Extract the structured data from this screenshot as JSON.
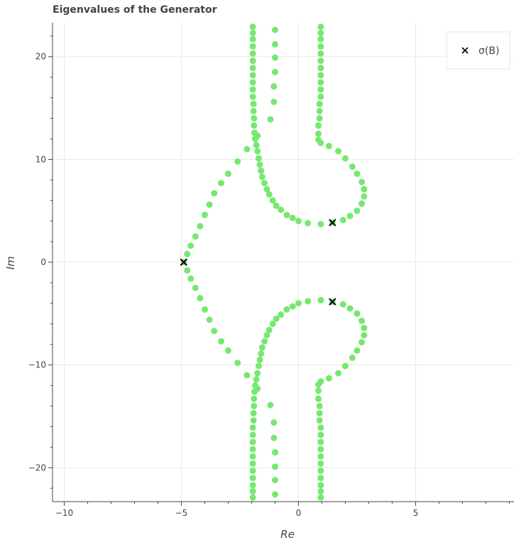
{
  "chart_data": {
    "type": "scatter",
    "title": "Eigenvalues of the Generator",
    "xlabel": "Re",
    "ylabel": "Im",
    "xlim": [
      -10.5,
      9.2
    ],
    "ylim": [
      -23.3,
      23.3
    ],
    "x_ticks": [
      -10,
      -5,
      0,
      5
    ],
    "y_ticks": [
      -20,
      -10,
      0,
      10,
      20
    ],
    "x_tick_labels": [
      "−10",
      "−5",
      "0",
      "5"
    ],
    "y_tick_labels": [
      "−20",
      "−10",
      "0",
      "10",
      "20"
    ],
    "grid": true,
    "legend_position": "top-right",
    "colors": {
      "points": "#77e86f",
      "markers": "#000000"
    },
    "series": [
      {
        "marker": "circle",
        "points": [
          [
            -1.95,
            22.9
          ],
          [
            -1.95,
            22.3
          ],
          [
            -1.95,
            21.7
          ],
          [
            -1.95,
            21.0
          ],
          [
            -1.95,
            20.3
          ],
          [
            -1.95,
            19.6
          ],
          [
            -1.95,
            18.9
          ],
          [
            -1.95,
            18.2
          ],
          [
            -1.95,
            17.5
          ],
          [
            -1.95,
            16.8
          ],
          [
            -1.95,
            16.1
          ],
          [
            -1.92,
            15.4
          ],
          [
            -1.92,
            14.7
          ],
          [
            -1.9,
            14.0
          ],
          [
            -1.9,
            13.3
          ],
          [
            -1.88,
            12.6
          ],
          [
            -1.85,
            12.0
          ],
          [
            -1.75,
            12.3
          ],
          [
            -1.8,
            11.4
          ],
          [
            -1.75,
            10.8
          ],
          [
            -1.7,
            10.1
          ],
          [
            -1.65,
            9.5
          ],
          [
            -1.6,
            8.9
          ],
          [
            -1.55,
            8.3
          ],
          [
            -1.45,
            7.7
          ],
          [
            -1.35,
            7.1
          ],
          [
            -1.25,
            6.6
          ],
          [
            -1.1,
            6.0
          ],
          [
            -0.95,
            5.5
          ],
          [
            -0.75,
            5.1
          ],
          [
            -0.5,
            4.6
          ],
          [
            -0.25,
            4.3
          ],
          [
            0.0,
            4.0
          ],
          [
            0.4,
            3.8
          ],
          [
            0.95,
            3.7
          ],
          [
            1.45,
            3.85
          ],
          [
            1.9,
            4.1
          ],
          [
            2.2,
            4.5
          ],
          [
            2.5,
            5.0
          ],
          [
            2.7,
            5.7
          ],
          [
            2.8,
            6.4
          ],
          [
            2.8,
            7.1
          ],
          [
            2.7,
            7.8
          ],
          [
            2.5,
            8.6
          ],
          [
            2.3,
            9.3
          ],
          [
            2.0,
            10.1
          ],
          [
            1.7,
            10.8
          ],
          [
            1.3,
            11.3
          ],
          [
            0.95,
            11.6
          ],
          [
            0.85,
            11.9
          ],
          [
            0.85,
            12.5
          ],
          [
            0.85,
            13.3
          ],
          [
            0.9,
            14.0
          ],
          [
            0.9,
            14.7
          ],
          [
            0.9,
            15.4
          ],
          [
            0.95,
            16.1
          ],
          [
            0.95,
            16.8
          ],
          [
            0.95,
            17.5
          ],
          [
            0.95,
            18.2
          ],
          [
            0.95,
            18.9
          ],
          [
            0.95,
            19.6
          ],
          [
            0.95,
            20.3
          ],
          [
            0.95,
            21.0
          ],
          [
            0.95,
            21.7
          ],
          [
            0.95,
            22.3
          ],
          [
            0.95,
            22.9
          ],
          [
            -1.0,
            22.6
          ],
          [
            -1.0,
            21.2
          ],
          [
            -1.0,
            19.9
          ],
          [
            -1.0,
            18.5
          ],
          [
            -1.05,
            17.1
          ],
          [
            -1.05,
            15.6
          ],
          [
            -1.2,
            13.9
          ],
          [
            -2.2,
            11.0
          ],
          [
            -2.6,
            9.8
          ],
          [
            -3.0,
            8.6
          ],
          [
            -3.3,
            7.7
          ],
          [
            -3.6,
            6.7
          ],
          [
            -3.8,
            5.6
          ],
          [
            -4.0,
            4.6
          ],
          [
            -4.2,
            3.5
          ],
          [
            -4.4,
            2.5
          ],
          [
            -4.6,
            1.6
          ],
          [
            -4.75,
            0.8
          ],
          [
            -4.9,
            0.0
          ],
          [
            -1.95,
            -22.9
          ],
          [
            -1.95,
            -22.3
          ],
          [
            -1.95,
            -21.7
          ],
          [
            -1.95,
            -21.0
          ],
          [
            -1.95,
            -20.3
          ],
          [
            -1.95,
            -19.6
          ],
          [
            -1.95,
            -18.9
          ],
          [
            -1.95,
            -18.2
          ],
          [
            -1.95,
            -17.5
          ],
          [
            -1.95,
            -16.8
          ],
          [
            -1.95,
            -16.1
          ],
          [
            -1.92,
            -15.4
          ],
          [
            -1.92,
            -14.7
          ],
          [
            -1.9,
            -14.0
          ],
          [
            -1.9,
            -13.3
          ],
          [
            -1.88,
            -12.6
          ],
          [
            -1.85,
            -12.0
          ],
          [
            -1.75,
            -12.3
          ],
          [
            -1.8,
            -11.4
          ],
          [
            -1.75,
            -10.8
          ],
          [
            -1.7,
            -10.1
          ],
          [
            -1.65,
            -9.5
          ],
          [
            -1.6,
            -8.9
          ],
          [
            -1.55,
            -8.3
          ],
          [
            -1.45,
            -7.7
          ],
          [
            -1.35,
            -7.1
          ],
          [
            -1.25,
            -6.6
          ],
          [
            -1.1,
            -6.0
          ],
          [
            -0.95,
            -5.5
          ],
          [
            -0.75,
            -5.1
          ],
          [
            -0.5,
            -4.6
          ],
          [
            -0.25,
            -4.3
          ],
          [
            0.0,
            -4.0
          ],
          [
            0.4,
            -3.8
          ],
          [
            0.95,
            -3.7
          ],
          [
            1.45,
            -3.85
          ],
          [
            1.9,
            -4.1
          ],
          [
            2.2,
            -4.5
          ],
          [
            2.5,
            -5.0
          ],
          [
            2.7,
            -5.7
          ],
          [
            2.8,
            -6.4
          ],
          [
            2.8,
            -7.1
          ],
          [
            2.7,
            -7.8
          ],
          [
            2.5,
            -8.6
          ],
          [
            2.3,
            -9.3
          ],
          [
            2.0,
            -10.1
          ],
          [
            1.7,
            -10.8
          ],
          [
            1.3,
            -11.3
          ],
          [
            0.95,
            -11.6
          ],
          [
            0.85,
            -11.9
          ],
          [
            0.85,
            -12.5
          ],
          [
            0.85,
            -13.3
          ],
          [
            0.9,
            -14.0
          ],
          [
            0.9,
            -14.7
          ],
          [
            0.9,
            -15.4
          ],
          [
            0.95,
            -16.1
          ],
          [
            0.95,
            -16.8
          ],
          [
            0.95,
            -17.5
          ],
          [
            0.95,
            -18.2
          ],
          [
            0.95,
            -18.9
          ],
          [
            0.95,
            -19.6
          ],
          [
            0.95,
            -20.3
          ],
          [
            0.95,
            -21.0
          ],
          [
            0.95,
            -21.7
          ],
          [
            0.95,
            -22.3
          ],
          [
            0.95,
            -22.9
          ],
          [
            -1.0,
            -22.6
          ],
          [
            -1.0,
            -21.2
          ],
          [
            -1.0,
            -19.9
          ],
          [
            -1.0,
            -18.5
          ],
          [
            -1.05,
            -17.1
          ],
          [
            -1.05,
            -15.6
          ],
          [
            -1.2,
            -13.9
          ],
          [
            -2.2,
            -11.0
          ],
          [
            -2.6,
            -9.8
          ],
          [
            -3.0,
            -8.6
          ],
          [
            -3.3,
            -7.7
          ],
          [
            -3.6,
            -6.7
          ],
          [
            -3.8,
            -5.6
          ],
          [
            -4.0,
            -4.6
          ],
          [
            -4.2,
            -3.5
          ],
          [
            -4.4,
            -2.5
          ],
          [
            -4.6,
            -1.6
          ],
          [
            -4.75,
            -0.8
          ]
        ]
      },
      {
        "name": "σ(B)",
        "marker": "x",
        "points": [
          [
            -4.9,
            0.0
          ],
          [
            1.45,
            3.85
          ],
          [
            1.45,
            -3.85
          ]
        ]
      }
    ]
  }
}
